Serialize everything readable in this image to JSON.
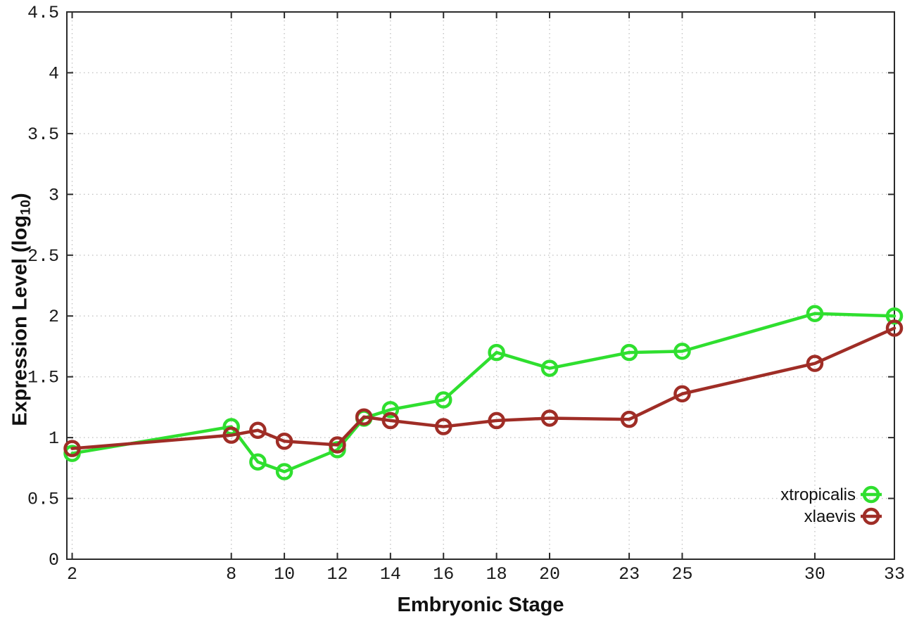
{
  "chart_data": {
    "type": "line",
    "title": "",
    "xlabel": "Embryonic Stage",
    "ylabel": "Expression Level (log10)",
    "ylabel_parts": {
      "prefix": "Expression Level (log",
      "subscript": "10",
      "suffix": ")"
    },
    "x": [
      2,
      8,
      9,
      10,
      12,
      13,
      14,
      16,
      18,
      20,
      23,
      25,
      30,
      33
    ],
    "series": [
      {
        "name": "xtropicalis",
        "color": "#2fdf2f",
        "values": [
          0.87,
          1.09,
          0.8,
          0.72,
          0.9,
          1.16,
          1.23,
          1.31,
          1.7,
          1.57,
          1.7,
          1.71,
          2.02,
          2.0
        ]
      },
      {
        "name": "xlaevis",
        "color": "#9f2d26",
        "values": [
          0.91,
          1.02,
          1.06,
          0.97,
          0.94,
          1.17,
          1.14,
          1.09,
          1.14,
          1.16,
          1.15,
          1.36,
          1.61,
          1.9
        ]
      }
    ],
    "x_ticks": [
      2,
      8,
      10,
      12,
      14,
      16,
      18,
      20,
      23,
      25,
      30,
      33
    ],
    "x_tick_labels": [
      "2",
      "8",
      "10",
      "12",
      "14",
      "16",
      "18",
      "20",
      "23",
      "25",
      "30",
      "33"
    ],
    "y_ticks": [
      0,
      0.5,
      1,
      1.5,
      2,
      2.5,
      3,
      3.5,
      4,
      4.5
    ],
    "y_tick_labels": [
      "0",
      "0.5",
      "1",
      "1.5",
      "2",
      "2.5",
      "3",
      "3.5",
      "4",
      "4.5"
    ],
    "xlim": [
      1.8,
      33
    ],
    "ylim": [
      0,
      4.5
    ],
    "grid": true,
    "legend_position": "bottom-right-inside",
    "style": {
      "grid_color": "#c4c4c4",
      "border_color": "#2b2b2b",
      "tick_label_color": "#1a1a1a",
      "legend_text_color": "#111111",
      "background": "#ffffff",
      "line_width": 4.5,
      "marker_radius": 10
    }
  }
}
